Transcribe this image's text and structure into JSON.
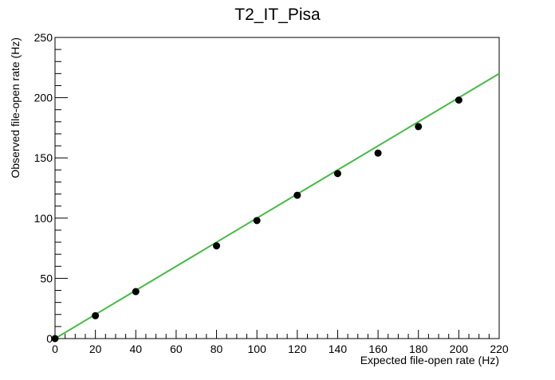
{
  "chart_data": {
    "type": "scatter",
    "title": "T2_IT_Pisa",
    "xlabel": "Expected file-open rate (Hz)",
    "ylabel": "Observed file-open rate (Hz)",
    "xlim": [
      0,
      220
    ],
    "ylim": [
      0,
      250
    ],
    "grid": false,
    "x_ticks": [
      0,
      20,
      40,
      60,
      80,
      100,
      120,
      140,
      160,
      180,
      200,
      220
    ],
    "y_ticks": [
      0,
      50,
      100,
      150,
      200,
      250
    ],
    "x_tick_labels": [
      "0",
      "20",
      "40",
      "60",
      "80",
      "100",
      "120",
      "140",
      "160",
      "180",
      "200",
      "220"
    ],
    "y_tick_labels": [
      "0",
      "50",
      "100",
      "150",
      "200",
      "250"
    ],
    "series": [
      {
        "kind": "points",
        "color": "#000000",
        "x": [
          0,
          20,
          40,
          80,
          100,
          120,
          140,
          160,
          180,
          200
        ],
        "y": [
          0,
          19,
          39,
          77,
          98,
          119,
          137,
          154,
          176,
          198
        ]
      },
      {
        "kind": "line",
        "color": "#44bb44",
        "x": [
          0,
          220
        ],
        "y": [
          0,
          220
        ]
      }
    ]
  }
}
